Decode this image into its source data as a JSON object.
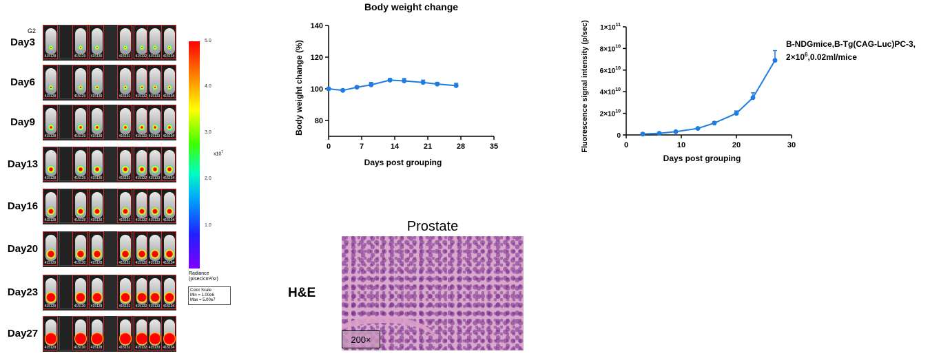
{
  "imaging_panel": {
    "group_label": "G2",
    "days": [
      {
        "label": "Day3",
        "ids": [
          "415128",
          "",
          "415129",
          "415130",
          "415131",
          "415132",
          "415133",
          "415134"
        ],
        "level": 0.15
      },
      {
        "label": "Day6",
        "ids": [
          "415128",
          "",
          "415129",
          "415130",
          "415131",
          "415132",
          "415133",
          "415134"
        ],
        "level": 0.22
      },
      {
        "label": "Day9",
        "ids": [
          "415128",
          "",
          "415129",
          "415130",
          "415131",
          "415132",
          "415133",
          "415134"
        ],
        "level": 0.3
      },
      {
        "label": "Day13",
        "ids": [
          "415128",
          "",
          "415129",
          "415130",
          "415131",
          "415132",
          "415133",
          "415134"
        ],
        "level": 0.42
      },
      {
        "label": "Day16",
        "ids": [
          "415128",
          "",
          "415129",
          "415130",
          "415131",
          "415132",
          "415133",
          "415134"
        ],
        "level": 0.55
      },
      {
        "label": "Day20",
        "ids": [
          "415129",
          "",
          "415130",
          "415128",
          "415131",
          "415132",
          "415133",
          "415134"
        ],
        "level": 0.68
      },
      {
        "label": "Day23",
        "ids": [
          "415129",
          "",
          "415130",
          "415128",
          "415131",
          "415132",
          "415133",
          "415134"
        ],
        "level": 0.82
      },
      {
        "label": "Day27",
        "ids": [
          "415129",
          "",
          "415130",
          "415128",
          "415131",
          "415132",
          "415133",
          "415134"
        ],
        "level": 0.95
      }
    ],
    "color_scale": {
      "ticks": [
        "5.0",
        "4.0",
        "3.0",
        "2.0",
        "1.0"
      ],
      "multiplier": "x10",
      "multiplier_exp": "7",
      "radiance_label": "Radiance",
      "radiance_unit": "(p/sec/cm²/sr)",
      "legend_title": "Color Scale",
      "legend_min": "Min = 1.00e6",
      "legend_max": "Max = 5.00e7"
    }
  },
  "chart_data": [
    {
      "type": "line",
      "title": "Body weight change",
      "xlabel": "Days post grouping",
      "ylabel": "Body weight change (%)",
      "xlim": [
        0,
        35
      ],
      "ylim": [
        70,
        140
      ],
      "xticks": [
        0,
        7,
        14,
        21,
        28,
        35
      ],
      "yticks": [
        80,
        100,
        120,
        140
      ],
      "color": "#1e7be0",
      "x": [
        0,
        3,
        6,
        9,
        13,
        16,
        20,
        23,
        27
      ],
      "y": [
        100,
        99,
        101,
        102.5,
        105.5,
        105,
        104,
        103,
        102
      ],
      "error": [
        0.8,
        0.8,
        0.8,
        1.5,
        1,
        1.5,
        1.5,
        1,
        1.5
      ]
    },
    {
      "type": "line",
      "title": "",
      "xlabel": "Days post grouping",
      "ylabel": "Fluorescence signal intensity (p/sec)",
      "xlim": [
        0,
        30
      ],
      "ylim": [
        0,
        100000000000
      ],
      "xticks": [
        0,
        10,
        20,
        30
      ],
      "yticks": [
        0,
        20000000000,
        40000000000,
        60000000000,
        80000000000,
        100000000000
      ],
      "ytick_mantissas": [
        "0",
        "2×10",
        "4×10",
        "6×10",
        "8×10",
        "1×10"
      ],
      "ytick_exponents": [
        "",
        "10",
        "10",
        "10",
        "10",
        "11"
      ],
      "color": "#1e7be0",
      "x": [
        3,
        6,
        9,
        13,
        16,
        20,
        23,
        27
      ],
      "y": [
        800000000,
        1500000000,
        3000000000,
        6000000000,
        11000000000,
        20000000000,
        34500000000,
        69000000000
      ],
      "error": [
        200000000,
        300000000,
        500000000,
        800000000,
        1200000000,
        2200000000,
        4500000000,
        9000000000
      ],
      "annotation_line1": "B-NDGmice,B-Tg(CAG-Luc)PC-3,",
      "annotation_line2_pre": "2×10",
      "annotation_line2_sup": "6",
      "annotation_line2_post": ",0.02ml/mice"
    }
  ],
  "histology": {
    "title": "Prostate",
    "stain_label": "H&E",
    "magnification": "200×"
  }
}
